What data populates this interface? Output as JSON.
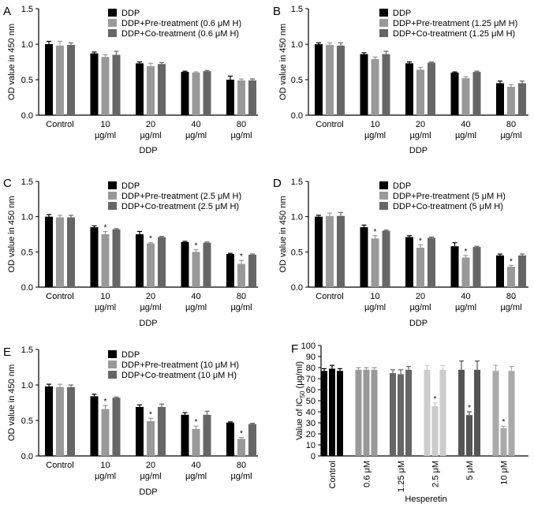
{
  "chart_data": [
    {
      "panel": "A",
      "type": "bar",
      "categories": [
        "Control",
        "10 µg/ml",
        "20 µg/ml",
        "40 µg/ml",
        "80 µg/ml"
      ],
      "category_lines": [
        [
          "Control"
        ],
        [
          "10",
          "µg/ml"
        ],
        [
          "20",
          "µg/ml"
        ],
        [
          "40",
          "µg/ml"
        ],
        [
          "80",
          "µg/ml"
        ]
      ],
      "xlabel": "DDP",
      "ylabel": "OD value in 450 nm",
      "ylim": [
        0,
        1.5
      ],
      "yticks": [
        "0.0",
        "0.5",
        "1.0",
        "1.5"
      ],
      "series": [
        {
          "name": "DDP",
          "color": "#000000",
          "values": [
            1.0,
            0.87,
            0.73,
            0.61,
            0.5
          ],
          "err": [
            0.04,
            0.02,
            0.02,
            0.01,
            0.05
          ],
          "stars": [
            false,
            false,
            false,
            false,
            false
          ]
        },
        {
          "name": "DDP+Pre-treatment (0.6 μM H)",
          "color": "#999999",
          "values": [
            0.98,
            0.82,
            0.69,
            0.6,
            0.49
          ],
          "err": [
            0.06,
            0.03,
            0.04,
            0.01,
            0.02
          ],
          "stars": [
            false,
            false,
            false,
            false,
            false
          ]
        },
        {
          "name": "DDP+Co-treatment (0.6 μM H)",
          "color": "#666666",
          "values": [
            0.99,
            0.85,
            0.72,
            0.62,
            0.49
          ],
          "err": [
            0.03,
            0.05,
            0.02,
            0.01,
            0.02
          ],
          "stars": [
            false,
            false,
            false,
            false,
            false
          ]
        }
      ]
    },
    {
      "panel": "B",
      "type": "bar",
      "categories": [
        "Control",
        "10 µg/ml",
        "20 µg/ml",
        "40 µg/ml",
        "80 µg/ml"
      ],
      "category_lines": [
        [
          "Control"
        ],
        [
          "10",
          "µg/ml"
        ],
        [
          "20",
          "µg/ml"
        ],
        [
          "40",
          "µg/ml"
        ],
        [
          "80",
          "µg/ml"
        ]
      ],
      "xlabel": "DDP",
      "ylabel": "OD value in 450 nm",
      "ylim": [
        0,
        1.5
      ],
      "yticks": [
        "0.0",
        "0.5",
        "1.0",
        "1.5"
      ],
      "series": [
        {
          "name": "DDP",
          "color": "#000000",
          "values": [
            1.0,
            0.86,
            0.73,
            0.6,
            0.45
          ],
          "err": [
            0.02,
            0.02,
            0.02,
            0.01,
            0.03
          ],
          "stars": [
            false,
            false,
            false,
            false,
            false
          ]
        },
        {
          "name": "DDP+Pre-treatment (1.25 μM H)",
          "color": "#999999",
          "values": [
            0.99,
            0.79,
            0.64,
            0.52,
            0.4
          ],
          "err": [
            0.03,
            0.03,
            0.03,
            0.02,
            0.03
          ],
          "stars": [
            false,
            false,
            false,
            false,
            false
          ]
        },
        {
          "name": "DDP+Co-treatment (1.25 μM H)",
          "color": "#666666",
          "values": [
            0.98,
            0.86,
            0.74,
            0.61,
            0.45
          ],
          "err": [
            0.04,
            0.04,
            0.01,
            0.01,
            0.03
          ],
          "stars": [
            false,
            false,
            false,
            false,
            false
          ]
        }
      ]
    },
    {
      "panel": "C",
      "type": "bar",
      "categories": [
        "Control",
        "10 µg/ml",
        "20 µg/ml",
        "40 µg/ml",
        "80 µg/ml"
      ],
      "category_lines": [
        [
          "Control"
        ],
        [
          "10",
          "µg/ml"
        ],
        [
          "20",
          "µg/ml"
        ],
        [
          "40",
          "µg/ml"
        ],
        [
          "80",
          "µg/ml"
        ]
      ],
      "xlabel": "DDP",
      "ylabel": "OD value in 450 nm",
      "ylim": [
        0,
        1.5
      ],
      "yticks": [
        "0.0",
        "0.5",
        "1.0",
        "1.5"
      ],
      "series": [
        {
          "name": "DDP",
          "color": "#000000",
          "values": [
            1.0,
            0.85,
            0.75,
            0.64,
            0.47
          ],
          "err": [
            0.03,
            0.02,
            0.04,
            0.01,
            0.01
          ],
          "stars": [
            false,
            false,
            false,
            false,
            false
          ]
        },
        {
          "name": "DDP+Pre-treatment (2.5 μM H)",
          "color": "#999999",
          "values": [
            0.99,
            0.75,
            0.62,
            0.5,
            0.33
          ],
          "err": [
            0.03,
            0.04,
            0.01,
            0.03,
            0.05
          ],
          "stars": [
            false,
            true,
            true,
            true,
            true
          ]
        },
        {
          "name": "DDP+Co-treatment (2.5 μM H)",
          "color": "#666666",
          "values": [
            0.99,
            0.82,
            0.71,
            0.63,
            0.46
          ],
          "err": [
            0.03,
            0.01,
            0.01,
            0.01,
            0.01
          ],
          "stars": [
            false,
            false,
            false,
            false,
            false
          ]
        }
      ]
    },
    {
      "panel": "D",
      "type": "bar",
      "categories": [
        "Control",
        "10 µg/ml",
        "20 µg/ml",
        "40 µg/ml",
        "80 µg/ml"
      ],
      "category_lines": [
        [
          "Control"
        ],
        [
          "10",
          "µg/ml"
        ],
        [
          "20",
          "µg/ml"
        ],
        [
          "40",
          "µg/ml"
        ],
        [
          "80",
          "µg/ml"
        ]
      ],
      "xlabel": "DDP",
      "ylabel": "OD value in 450 nm",
      "ylim": [
        0,
        1.5
      ],
      "yticks": [
        "0.0",
        "0.5",
        "1.0",
        "1.5"
      ],
      "series": [
        {
          "name": "DDP",
          "color": "#000000",
          "values": [
            1.0,
            0.85,
            0.71,
            0.58,
            0.45
          ],
          "err": [
            0.02,
            0.03,
            0.02,
            0.05,
            0.02
          ],
          "stars": [
            false,
            false,
            false,
            false,
            false
          ]
        },
        {
          "name": "DDP+Pre-treatment (5 μM H)",
          "color": "#999999",
          "values": [
            1.01,
            0.69,
            0.56,
            0.42,
            0.29
          ],
          "err": [
            0.04,
            0.04,
            0.04,
            0.03,
            0.02
          ],
          "stars": [
            false,
            true,
            true,
            true,
            true
          ]
        },
        {
          "name": "DDP+Co-treatment (5 μM H)",
          "color": "#666666",
          "values": [
            1.01,
            0.8,
            0.7,
            0.57,
            0.45
          ],
          "err": [
            0.05,
            0.01,
            0.01,
            0.01,
            0.02
          ],
          "stars": [
            false,
            false,
            false,
            false,
            false
          ]
        }
      ]
    },
    {
      "panel": "E",
      "type": "bar",
      "categories": [
        "Control",
        "10 µg/ml",
        "20 µg/ml",
        "40 µg/ml",
        "80 µg/ml"
      ],
      "category_lines": [
        [
          "Control"
        ],
        [
          "10",
          "µg/ml"
        ],
        [
          "20",
          "µg/ml"
        ],
        [
          "40",
          "µg/ml"
        ],
        [
          "80",
          "µg/ml"
        ]
      ],
      "xlabel": "DDP",
      "ylabel": "OD value in 450 nm",
      "ylim": [
        0,
        1.5
      ],
      "yticks": [
        "0.0",
        "0.5",
        "1.0",
        "1.5"
      ],
      "series": [
        {
          "name": "DDP",
          "color": "#000000",
          "values": [
            0.98,
            0.84,
            0.69,
            0.58,
            0.47
          ],
          "err": [
            0.03,
            0.03,
            0.03,
            0.03,
            0.01
          ],
          "stars": [
            false,
            false,
            false,
            false,
            false
          ]
        },
        {
          "name": "DDP+Pre-treatment (10 μM H)",
          "color": "#999999",
          "values": [
            0.97,
            0.66,
            0.49,
            0.38,
            0.24
          ],
          "err": [
            0.04,
            0.05,
            0.04,
            0.04,
            0.02
          ],
          "stars": [
            false,
            true,
            true,
            true,
            true
          ]
        },
        {
          "name": "DDP+Co-treatment (10 μM H)",
          "color": "#666666",
          "values": [
            0.97,
            0.82,
            0.69,
            0.58,
            0.45
          ],
          "err": [
            0.03,
            0.01,
            0.04,
            0.05,
            0.01
          ],
          "stars": [
            false,
            false,
            false,
            false,
            false
          ]
        }
      ]
    },
    {
      "panel": "F",
      "type": "bar",
      "ylabel_main": "Value of IC",
      "ylabel_sub": "50",
      "ylabel_unit": " (μg/ml)",
      "xlabel": "Hesperetin",
      "ylim": [
        0,
        100
      ],
      "yticks": [
        "0",
        "10",
        "20",
        "30",
        "40",
        "50",
        "60",
        "70",
        "80",
        "90",
        "100"
      ],
      "groups": [
        {
          "label": "Control",
          "color": "#000000",
          "values": [
            77,
            79,
            77
          ],
          "err": [
            2,
            3,
            2
          ],
          "stars": [
            false,
            false,
            false
          ]
        },
        {
          "label": "0.6 μM",
          "color": "#999999",
          "values": [
            78,
            78,
            78
          ],
          "err": [
            2,
            2,
            2
          ],
          "stars": [
            false,
            false,
            false
          ]
        },
        {
          "label": "1.25 μM",
          "color": "#666666",
          "values": [
            75,
            74,
            78
          ],
          "err": [
            3,
            4,
            3
          ],
          "stars": [
            false,
            false,
            false
          ]
        },
        {
          "label": "2.5 μM",
          "color": "#cccccc",
          "values": [
            78,
            45,
            78
          ],
          "err": [
            4,
            3,
            4
          ],
          "stars": [
            false,
            true,
            false
          ]
        },
        {
          "label": "5 μM",
          "color": "#555555",
          "values": [
            78,
            37,
            78
          ],
          "err": [
            8,
            3,
            8
          ],
          "stars": [
            false,
            true,
            false
          ]
        },
        {
          "label": "10 μM",
          "color": "#aaaaaa",
          "values": [
            77,
            25,
            77
          ],
          "err": [
            5,
            2,
            4
          ],
          "stars": [
            false,
            true,
            false
          ]
        }
      ]
    }
  ]
}
